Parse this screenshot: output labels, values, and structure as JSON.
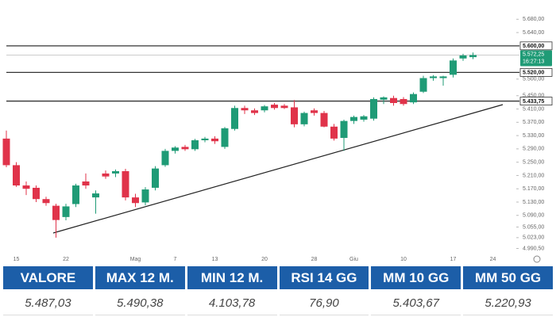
{
  "chart_data": {
    "type": "candlestick",
    "categories": [
      null,
      "15",
      null,
      null,
      null,
      null,
      "22",
      null,
      null,
      null,
      null,
      null,
      null,
      "Mag",
      null,
      null,
      null,
      "7",
      null,
      null,
      null,
      "13",
      null,
      null,
      null,
      null,
      "20",
      null,
      null,
      null,
      null,
      "28",
      null,
      null,
      null,
      "Giu",
      null,
      null,
      null,
      null,
      "10",
      null,
      null,
      null,
      null,
      "17",
      null,
      null,
      null,
      "24",
      null
    ],
    "open": [
      5321,
      5241,
      5180,
      5173,
      5139,
      5119,
      5085,
      5124,
      5192,
      5144,
      5216,
      5216,
      5223,
      5144,
      5129,
      5173,
      5241,
      5284,
      5296,
      5289,
      5316,
      5321,
      5296,
      5350,
      5413,
      5406,
      5406,
      5423,
      5420,
      5415,
      5364,
      5406,
      5398,
      5357,
      5323,
      5374,
      5378,
      5381,
      5438,
      5443,
      5440,
      5430,
      5462,
      5503,
      5503,
      5513,
      5562,
      5566,
      null,
      null,
      null
    ],
    "high": [
      5345,
      5250,
      5192,
      5180,
      5146,
      5125,
      5125,
      5185,
      5216,
      5165,
      5225,
      5228,
      5230,
      5155,
      5175,
      5238,
      5290,
      5298,
      5302,
      5320,
      5326,
      5328,
      5356,
      5420,
      5420,
      5412,
      5422,
      5428,
      5425,
      5437,
      5402,
      5412,
      5404,
      5365,
      5378,
      5390,
      5392,
      5445,
      5448,
      5450,
      5446,
      5460,
      5510,
      5512,
      5510,
      5562,
      5576,
      5580,
      null,
      null,
      null
    ],
    "low": [
      5235,
      5176,
      5151,
      5130,
      5119,
      5023,
      5075,
      5115,
      5170,
      5095,
      5200,
      5205,
      5135,
      5115,
      5120,
      5165,
      5236,
      5276,
      5284,
      5284,
      5310,
      5305,
      5290,
      5345,
      5395,
      5392,
      5400,
      5408,
      5410,
      5355,
      5358,
      5390,
      5355,
      5315,
      5284,
      5365,
      5372,
      5375,
      5425,
      5420,
      5420,
      5425,
      5458,
      5495,
      5480,
      5505,
      5555,
      5560,
      null,
      null,
      null
    ],
    "close": [
      5241,
      5180,
      5170,
      5139,
      5127,
      5076,
      5117,
      5180,
      5180,
      5156,
      5207,
      5223,
      5144,
      5127,
      5168,
      5231,
      5284,
      5294,
      5289,
      5316,
      5321,
      5313,
      5352,
      5413,
      5406,
      5398,
      5418,
      5413,
      5413,
      5364,
      5398,
      5398,
      5357,
      5321,
      5374,
      5386,
      5388,
      5440,
      5445,
      5428,
      5425,
      5455,
      5503,
      5508,
      5508,
      5556,
      5571,
      5572.25,
      null,
      null,
      null
    ],
    "up_color": "#1f9b76",
    "down_color": "#e0334a",
    "ylim": [
      4975,
      5695
    ],
    "yticks": [
      {
        "value": 5680,
        "label": "5.680,00"
      },
      {
        "value": 5640,
        "label": "5.640,00"
      },
      {
        "value": 5500,
        "label": "5.500,00"
      },
      {
        "value": 5450,
        "label": "5.450,00"
      },
      {
        "value": 5410,
        "label": "5.410,00"
      },
      {
        "value": 5370,
        "label": "5.370,00"
      },
      {
        "value": 5330,
        "label": "5.330,00"
      },
      {
        "value": 5290,
        "label": "5.290,00"
      },
      {
        "value": 5250,
        "label": "5.250,00"
      },
      {
        "value": 5210,
        "label": "5.210,00"
      },
      {
        "value": 5170,
        "label": "5.170,00"
      },
      {
        "value": 5130,
        "label": "5.130,00"
      },
      {
        "value": 5090,
        "label": "5.090,00"
      },
      {
        "value": 5055,
        "label": "5.055,00"
      },
      {
        "value": 5023,
        "label": "5.023,00"
      },
      {
        "value": 4990.5,
        "label": "4.990,50"
      }
    ],
    "levels": [
      {
        "value": 5600,
        "label": "5.600,00"
      },
      {
        "value": 5520,
        "label": "5.520,00"
      },
      {
        "value": 5433.75,
        "label": "5.433,75"
      }
    ],
    "level_color": "#333333",
    "price_line": {
      "value": 5572.25,
      "label": "5.572,25",
      "time": "16:27:13",
      "color": "#1f9b76"
    }
  },
  "table": {
    "headers": [
      "VALORE",
      "MAX 12 M.",
      "MIN 12 M.",
      "RSI 14 GG",
      "MM 10 GG",
      "MM 50 GG"
    ],
    "rows": [
      [
        "5.487,03",
        "5.490,38",
        "4.103,78",
        "76,90",
        "5.403,67",
        "5.220,93"
      ]
    ]
  }
}
